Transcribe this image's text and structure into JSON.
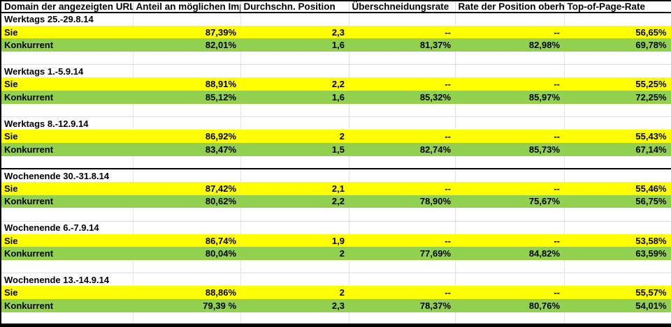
{
  "colors": {
    "sie_row_highlight": "#ffff00",
    "konkurrent_row_highlight": "#92d050",
    "gridline": "#e2e2e2",
    "divider": "#000000"
  },
  "table": {
    "columns": [
      "Domain der angezeigten URL",
      "Anteil an möglichen Impr.",
      "Durchschn. Position",
      "Überschneidungsrate",
      "Rate der Position oberhalb",
      "Top-of-Page-Rate"
    ],
    "groups": [
      {
        "period": "Werktags 25.-29.8.14",
        "sie": [
          "Sie",
          "87,39%",
          "2,3",
          "--",
          "--",
          "56,65%"
        ],
        "konkurrent": [
          "Konkurrent",
          "82,01%",
          "1,6",
          "81,37%",
          "82,98%",
          "69,78%"
        ]
      },
      {
        "period": "Werktags 1.-5.9.14",
        "sie": [
          "Sie",
          "88,91%",
          "2,2",
          "--",
          "--",
          "55,25%"
        ],
        "konkurrent": [
          "Konkurrent",
          "85,12%",
          "1,6",
          "85,32%",
          "85,97%",
          "72,25%"
        ]
      },
      {
        "period": "Werktags 8.-12.9.14",
        "sie": [
          "Sie",
          "86,92%",
          "2",
          "--",
          "--",
          "55,43%"
        ],
        "konkurrent": [
          "Konkurrent",
          "83,47%",
          "1,5",
          "82,74%",
          "85,73%",
          "67,14%"
        ]
      },
      {
        "period": "Wochenende 30.-31.8.14",
        "sie": [
          "Sie",
          "87,42%",
          "2,1",
          "--",
          "--",
          "55,46%"
        ],
        "konkurrent": [
          "Konkurrent",
          "80,62%",
          "2,2",
          "78,90%",
          "75,67%",
          "56,75%"
        ]
      },
      {
        "period": "Wochenende 6.-7.9.14",
        "sie": [
          "Sie",
          "86,74%",
          "1,9",
          "--",
          "--",
          "53,58%"
        ],
        "konkurrent": [
          "Konkurrent",
          "80,04%",
          "2",
          "77,69%",
          "84,82%",
          "63,59%"
        ]
      },
      {
        "period": "Wochenende 13.-14.9.14",
        "sie": [
          "Sie",
          "88,86%",
          "2",
          "--",
          "--",
          "55,57%"
        ],
        "konkurrent": [
          "Konkurrent",
          "79,39 %",
          "2,3",
          "78,37%",
          "80,76%",
          "54,01%"
        ]
      }
    ]
  }
}
